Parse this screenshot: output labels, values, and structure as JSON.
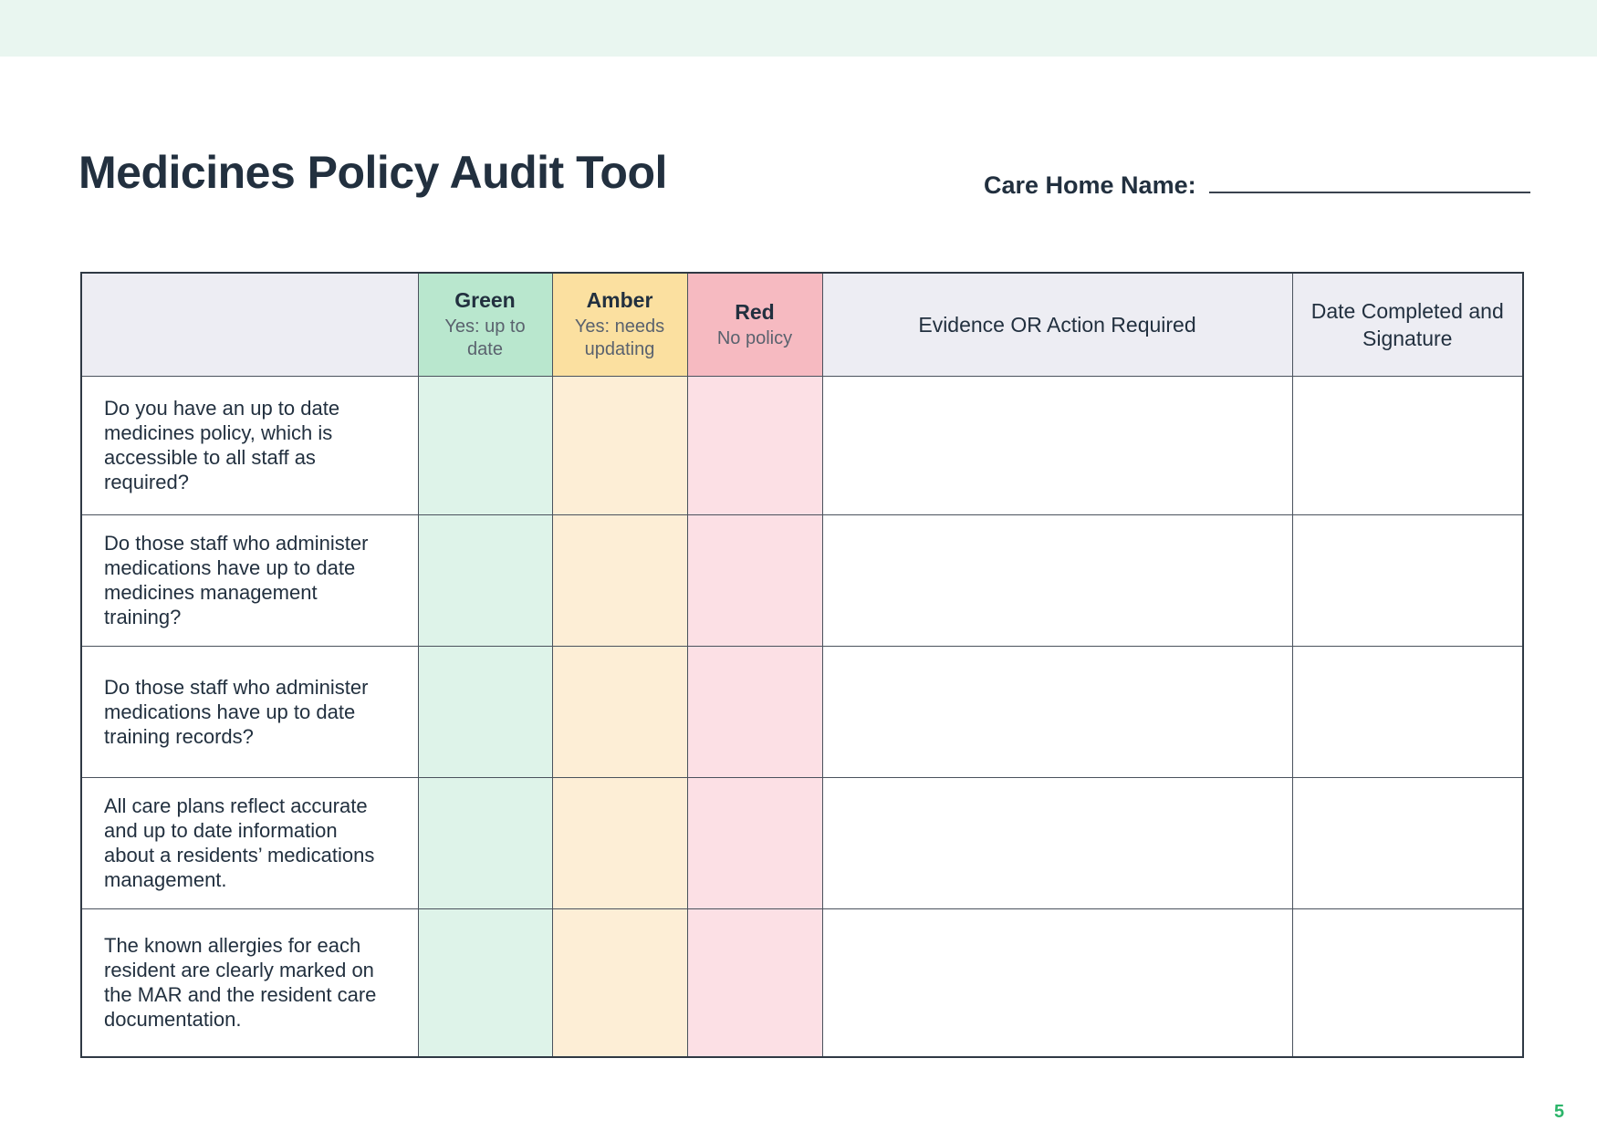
{
  "header": {
    "title": "Medicines Policy Audit Tool",
    "care_home_label": "Care Home Name:"
  },
  "table": {
    "columns": {
      "green": {
        "label": "Green",
        "sub": "Yes: up to date"
      },
      "amber": {
        "label": "Amber",
        "sub": "Yes: needs updating"
      },
      "red": {
        "label": "Red",
        "sub": "No policy"
      },
      "evidence": {
        "label": "Evidence OR Action Required"
      },
      "date": {
        "label": "Date Completed and Signature"
      }
    },
    "rows": [
      {
        "question": "Do you have an up to date medicines policy, which is accessible to all staff as required?"
      },
      {
        "question": "Do those staff who administer medications have up to date medicines management training?"
      },
      {
        "question": "Do those staff who administer medications have up to date training records?"
      },
      {
        "question": "All care plans reflect accurate and up to date information about a residents’ medications management."
      },
      {
        "question": "The known allergies for each resident are clearly marked on the MAR and the resident care documentation."
      }
    ]
  },
  "page": {
    "number": "5"
  },
  "colors": {
    "topbar": "#e9f6f0",
    "headerNeutral": "#ededf3",
    "greenHead": "#b9e7ce",
    "amberHead": "#fbe0a0",
    "redHead": "#f6bac1",
    "greenBody": "#def3e9",
    "amberBody": "#fdeed6",
    "redBody": "#fce0e5",
    "border": "#4a525d",
    "borderDark": "#2f3944",
    "navy": "#22303f",
    "grey": "#5a626e",
    "pageGreen": "#2cb56a"
  }
}
